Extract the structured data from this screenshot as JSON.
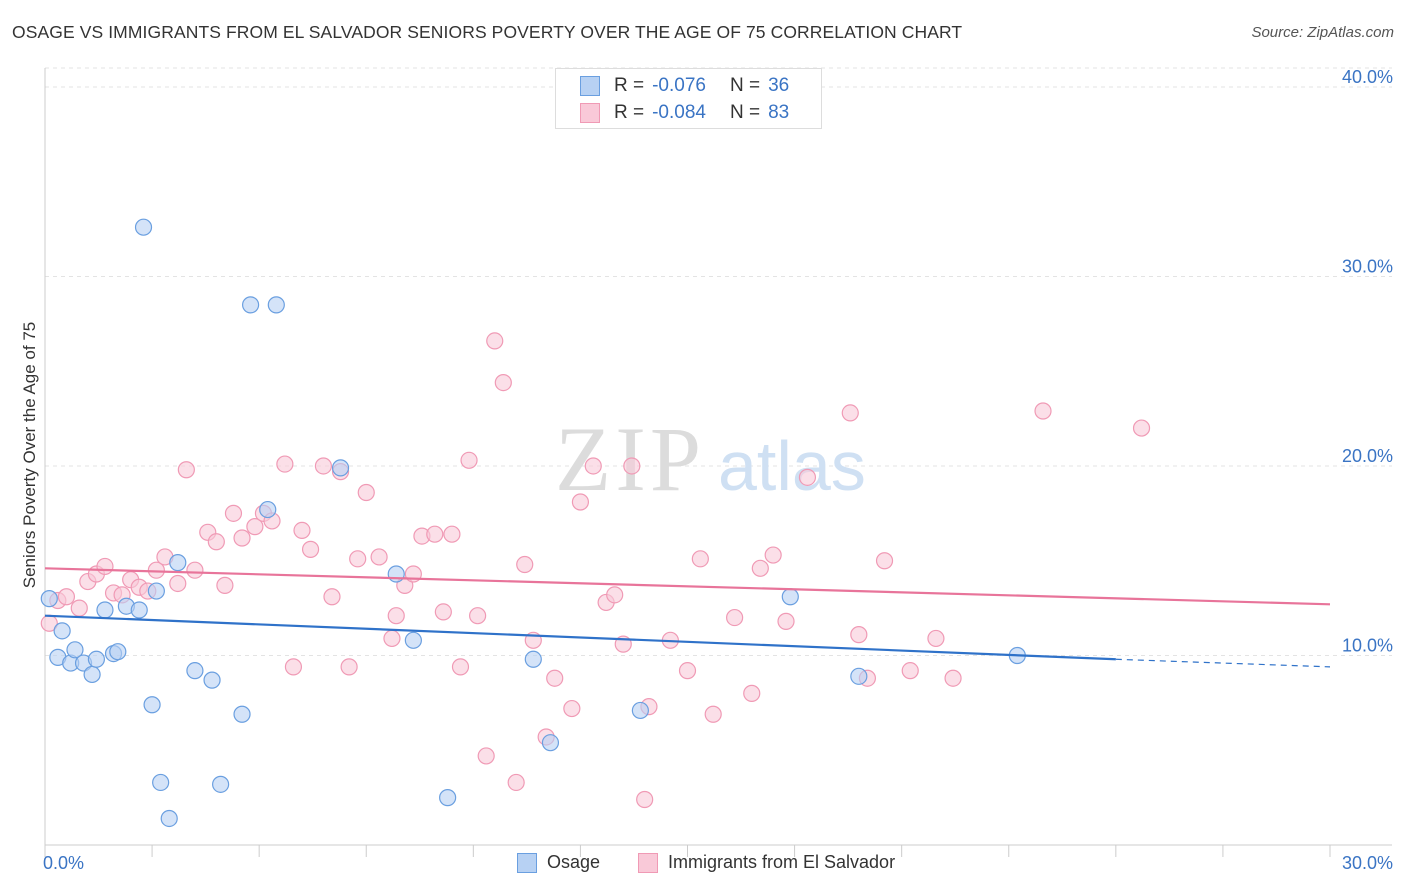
{
  "title": "OSAGE VS IMMIGRANTS FROM EL SALVADOR SENIORS POVERTY OVER THE AGE OF 75 CORRELATION CHART",
  "source": "Source: ZipAtlas.com",
  "watermark": {
    "zip": "ZIP",
    "atlas": "atlas"
  },
  "legend_top": {
    "rows": [
      {
        "r_label": "R =",
        "r_value": "-0.076",
        "n_label": "N =",
        "n_value": "36"
      },
      {
        "r_label": "R =",
        "r_value": "-0.084",
        "n_label": "N =",
        "n_value": "83"
      }
    ]
  },
  "chart_data": {
    "type": "scatter",
    "title": "OSAGE VS IMMIGRANTS FROM EL SALVADOR SENIORS POVERTY OVER THE AGE OF 75 CORRELATION CHART",
    "xlabel": "",
    "ylabel": "Seniors Poverty Over the Age of 75",
    "xlim": [
      0,
      30
    ],
    "ylim": [
      0,
      41
    ],
    "x_tick_labels": [
      "0.0%",
      "30.0%"
    ],
    "y_ticks": [
      10,
      20,
      30,
      40
    ],
    "y_tick_labels": [
      "10.0%",
      "20.0%",
      "30.0%",
      "40.0%"
    ],
    "grid": true,
    "legend_position": "bottom",
    "series": [
      {
        "name": "Osage",
        "color": "#6a9fe0",
        "fill": "#b7d1f3",
        "line_color": "#2f72c9",
        "trend": {
          "x": [
            0,
            25
          ],
          "y": [
            12.1,
            9.8
          ],
          "dashed_to": [
            30,
            9.4
          ]
        },
        "points": [
          [
            0.1,
            13.0
          ],
          [
            0.3,
            9.9
          ],
          [
            0.4,
            11.3
          ],
          [
            0.6,
            9.6
          ],
          [
            0.7,
            10.3
          ],
          [
            0.9,
            9.6
          ],
          [
            1.1,
            9.0
          ],
          [
            1.2,
            9.8
          ],
          [
            1.4,
            12.4
          ],
          [
            1.6,
            10.1
          ],
          [
            1.7,
            10.2
          ],
          [
            1.9,
            12.6
          ],
          [
            2.2,
            12.4
          ],
          [
            2.3,
            32.6
          ],
          [
            2.5,
            7.4
          ],
          [
            2.6,
            13.4
          ],
          [
            2.7,
            3.3
          ],
          [
            2.9,
            1.4
          ],
          [
            3.1,
            14.9
          ],
          [
            3.5,
            9.2
          ],
          [
            3.9,
            8.7
          ],
          [
            4.1,
            3.2
          ],
          [
            4.6,
            6.9
          ],
          [
            4.8,
            28.5
          ],
          [
            5.2,
            17.7
          ],
          [
            5.4,
            28.5
          ],
          [
            6.9,
            19.9
          ],
          [
            8.2,
            14.3
          ],
          [
            8.6,
            10.8
          ],
          [
            9.4,
            2.5
          ],
          [
            11.4,
            9.8
          ],
          [
            11.8,
            5.4
          ],
          [
            13.9,
            7.1
          ],
          [
            17.4,
            13.1
          ],
          [
            19.0,
            8.9
          ],
          [
            22.7,
            10.0
          ]
        ]
      },
      {
        "name": "Immigrants from El Salvador",
        "color": "#f09ab5",
        "fill": "#f9c9d8",
        "line_color": "#e8749a",
        "trend": {
          "x": [
            0,
            30
          ],
          "y": [
            14.6,
            12.7
          ]
        },
        "points": [
          [
            0.1,
            11.7
          ],
          [
            0.3,
            12.9
          ],
          [
            0.5,
            13.1
          ],
          [
            0.8,
            12.5
          ],
          [
            1.0,
            13.9
          ],
          [
            1.2,
            14.3
          ],
          [
            1.4,
            14.7
          ],
          [
            1.6,
            13.3
          ],
          [
            1.8,
            13.2
          ],
          [
            2.0,
            14.0
          ],
          [
            2.2,
            13.6
          ],
          [
            2.4,
            13.4
          ],
          [
            2.6,
            14.5
          ],
          [
            2.8,
            15.2
          ],
          [
            3.1,
            13.8
          ],
          [
            3.3,
            19.8
          ],
          [
            3.5,
            14.5
          ],
          [
            3.8,
            16.5
          ],
          [
            4.0,
            16.0
          ],
          [
            4.2,
            13.7
          ],
          [
            4.4,
            17.5
          ],
          [
            4.6,
            16.2
          ],
          [
            4.9,
            16.8
          ],
          [
            5.1,
            17.5
          ],
          [
            5.3,
            17.1
          ],
          [
            5.6,
            20.1
          ],
          [
            5.8,
            9.4
          ],
          [
            6.0,
            16.6
          ],
          [
            6.2,
            15.6
          ],
          [
            6.5,
            20.0
          ],
          [
            6.7,
            13.1
          ],
          [
            6.9,
            19.7
          ],
          [
            7.1,
            9.4
          ],
          [
            7.3,
            15.1
          ],
          [
            7.5,
            18.6
          ],
          [
            7.8,
            15.2
          ],
          [
            8.1,
            10.9
          ],
          [
            8.2,
            12.1
          ],
          [
            8.4,
            13.7
          ],
          [
            8.6,
            14.3
          ],
          [
            8.8,
            16.3
          ],
          [
            9.1,
            16.4
          ],
          [
            9.3,
            12.3
          ],
          [
            9.5,
            16.4
          ],
          [
            9.7,
            9.4
          ],
          [
            9.9,
            20.3
          ],
          [
            10.1,
            12.1
          ],
          [
            10.3,
            4.7
          ],
          [
            10.5,
            26.6
          ],
          [
            10.7,
            24.4
          ],
          [
            11.0,
            3.3
          ],
          [
            11.2,
            14.8
          ],
          [
            11.4,
            10.8
          ],
          [
            11.7,
            5.7
          ],
          [
            11.9,
            8.8
          ],
          [
            12.3,
            7.2
          ],
          [
            12.5,
            18.1
          ],
          [
            12.8,
            20.0
          ],
          [
            13.1,
            12.8
          ],
          [
            13.3,
            13.2
          ],
          [
            13.5,
            10.6
          ],
          [
            13.7,
            20.0
          ],
          [
            14.0,
            2.4
          ],
          [
            14.1,
            7.3
          ],
          [
            14.6,
            10.8
          ],
          [
            15.0,
            9.2
          ],
          [
            15.3,
            15.1
          ],
          [
            15.6,
            6.9
          ],
          [
            16.1,
            12.0
          ],
          [
            16.5,
            8.0
          ],
          [
            16.7,
            14.6
          ],
          [
            17.0,
            15.3
          ],
          [
            17.3,
            11.8
          ],
          [
            17.8,
            19.4
          ],
          [
            18.8,
            22.8
          ],
          [
            19.0,
            11.1
          ],
          [
            19.2,
            8.8
          ],
          [
            19.6,
            15.0
          ],
          [
            20.2,
            9.2
          ],
          [
            20.8,
            10.9
          ],
          [
            21.2,
            8.8
          ],
          [
            23.3,
            22.9
          ],
          [
            25.6,
            22.0
          ]
        ]
      }
    ]
  }
}
